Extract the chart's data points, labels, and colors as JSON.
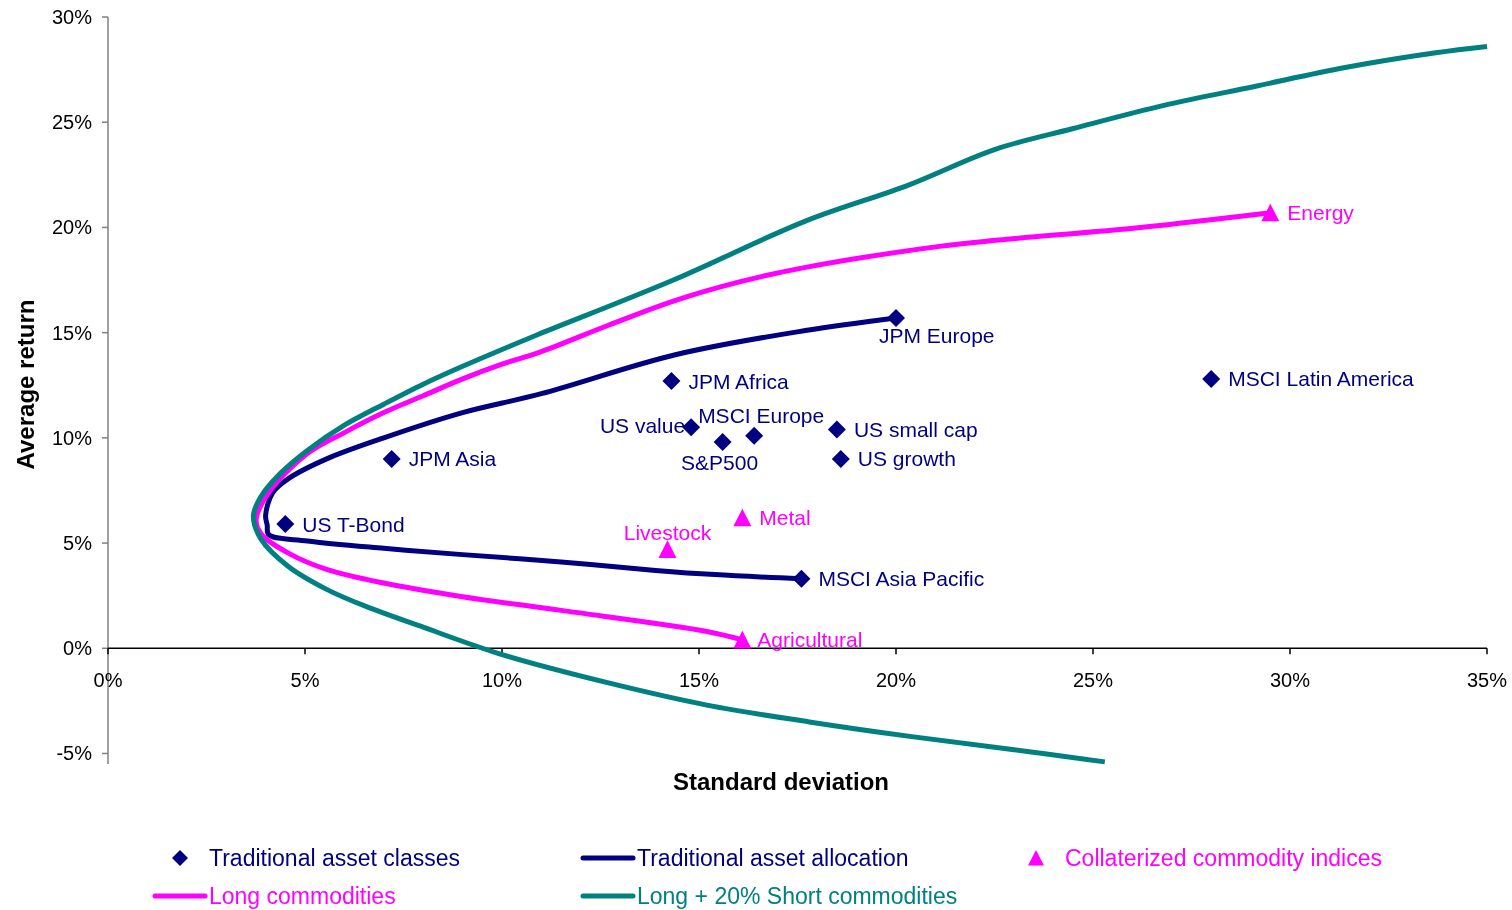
{
  "chart_data": {
    "type": "scatter",
    "xlabel": "Standard deviation",
    "ylabel": "Average return",
    "xlim": [
      0,
      35
    ],
    "xticks": [
      {
        "value": 0,
        "label": "0%"
      },
      {
        "value": 5,
        "label": "5%"
      },
      {
        "value": 10,
        "label": "10%"
      },
      {
        "value": 15,
        "label": "15%"
      },
      {
        "value": 20,
        "label": "20%"
      },
      {
        "value": 25,
        "label": "25%"
      },
      {
        "value": 30,
        "label": "30%"
      },
      {
        "value": 35,
        "label": "35%"
      }
    ],
    "ylim": [
      -5.5,
      30
    ],
    "yticks": [
      {
        "value": -5,
        "label": "-5%"
      },
      {
        "value": 0,
        "label": "0%"
      },
      {
        "value": 5,
        "label": "5%"
      },
      {
        "value": 10,
        "label": "10%"
      },
      {
        "value": 15,
        "label": "15%"
      },
      {
        "value": 20,
        "label": "20%"
      },
      {
        "value": 25,
        "label": "25%"
      },
      {
        "value": 30,
        "label": "30%"
      }
    ],
    "legend": "bottom",
    "series": [
      {
        "name": "Traditional asset classes",
        "type": "scatter",
        "marker": "diamond",
        "color": "#000080",
        "x": [
          4.5,
          7.2,
          14.3,
          14.8,
          16.4,
          15.6,
          18.5,
          18.6,
          20.0,
          28.0,
          17.6
        ],
        "values": [
          5.9,
          9.0,
          12.7,
          10.5,
          10.1,
          9.8,
          10.4,
          9.0,
          15.7,
          12.8,
          3.3
        ]
      },
      {
        "name": "Traditional asset allocation",
        "type": "line",
        "color": "#000080",
        "x": [
          20.0,
          17.7,
          14.4,
          11.0,
          9.0,
          7.0,
          5.55,
          4.57,
          4.18,
          4.0,
          4.04,
          4.08,
          5.06,
          7.0,
          9.0,
          11.5,
          13.9,
          15.4,
          17.6
        ],
        "values": [
          15.7,
          15.1,
          13.95,
          12.1,
          11.2,
          10.0,
          9.0,
          8.05,
          7.4,
          6.3,
          5.85,
          5.4,
          5.1,
          4.75,
          4.45,
          4.1,
          3.7,
          3.5,
          3.3
        ]
      },
      {
        "name": "Collaterized commodity indices",
        "type": "scatter",
        "marker": "triangle",
        "color": "#ff00ff",
        "x": [
          29.5,
          16.1,
          14.2,
          16.1
        ],
        "values": [
          20.7,
          6.2,
          4.7,
          0.4
        ]
      },
      {
        "name": "Long commodities",
        "type": "line",
        "color": "#ff00ff",
        "x": [
          29.5,
          26.2,
          22.6,
          21.1,
          17.7,
          16.0,
          14.35,
          12.7,
          11.0,
          10.0,
          9.0,
          8.0,
          7.0,
          6.0,
          5.06,
          4.08,
          3.76,
          3.9,
          4.6,
          5.55,
          7.0,
          9.0,
          11.5,
          15.2,
          16.1
        ],
        "values": [
          20.7,
          20.0,
          19.4,
          19.1,
          18.1,
          17.4,
          16.5,
          15.35,
          14.1,
          13.5,
          12.8,
          12.0,
          11.2,
          10.25,
          9.25,
          7.4,
          6.1,
          5.4,
          4.5,
          3.75,
          3.1,
          2.45,
          1.8,
          0.8,
          0.4
        ]
      },
      {
        "name": "Long + 20% Short commodities",
        "type": "line",
        "color": "#008080",
        "x": [
          35.0,
          33.7,
          31.4,
          29.1,
          26.8,
          24.5,
          22.5,
          20.3,
          17.7,
          14.35,
          10.9,
          10.0,
          9.0,
          8.0,
          7.0,
          6.0,
          5.06,
          4.37,
          3.88,
          3.69,
          3.88,
          4.57,
          5.55,
          6.53,
          8.0,
          10.0,
          12.6,
          15.2,
          17.8,
          20.4,
          22.9,
          25.3
        ],
        "values": [
          28.6,
          28.3,
          27.6,
          26.7,
          25.8,
          24.7,
          23.7,
          22.0,
          20.3,
          17.5,
          14.9,
          14.2,
          13.4,
          12.55,
          11.6,
          10.6,
          9.4,
          8.3,
          7.2,
          6.3,
          5.2,
          3.9,
          2.8,
          2.0,
          1.0,
          -0.3,
          -1.6,
          -2.7,
          -3.5,
          -4.2,
          -4.8,
          -5.4
        ]
      }
    ],
    "annotations": [
      {
        "text": "US T-Bond",
        "x": 4.5,
        "y": 5.9
      },
      {
        "text": "JPM Asia",
        "x": 7.2,
        "y": 9.0
      },
      {
        "text": "JPM Africa",
        "x": 14.3,
        "y": 12.7
      },
      {
        "text": "US value",
        "x": 14.8,
        "y": 10.5
      },
      {
        "text": "MSCI Europe",
        "x": 16.4,
        "y": 10.1
      },
      {
        "text": "S&P500",
        "x": 15.6,
        "y": 9.8
      },
      {
        "text": "US small cap",
        "x": 18.5,
        "y": 10.4
      },
      {
        "text": "US growth",
        "x": 18.6,
        "y": 9.0
      },
      {
        "text": "JPM Europe",
        "x": 20.0,
        "y": 15.7
      },
      {
        "text": "MSCI Latin America",
        "x": 28.0,
        "y": 12.8
      },
      {
        "text": "MSCI Asia Pacific",
        "x": 17.6,
        "y": 3.3
      },
      {
        "text": "Energy",
        "x": 29.5,
        "y": 20.7
      },
      {
        "text": "Metal",
        "x": 16.1,
        "y": 6.2
      },
      {
        "text": "Livestock",
        "x": 14.2,
        "y": 4.7
      },
      {
        "text": "Agricultural",
        "x": 16.1,
        "y": 0.4
      }
    ]
  }
}
